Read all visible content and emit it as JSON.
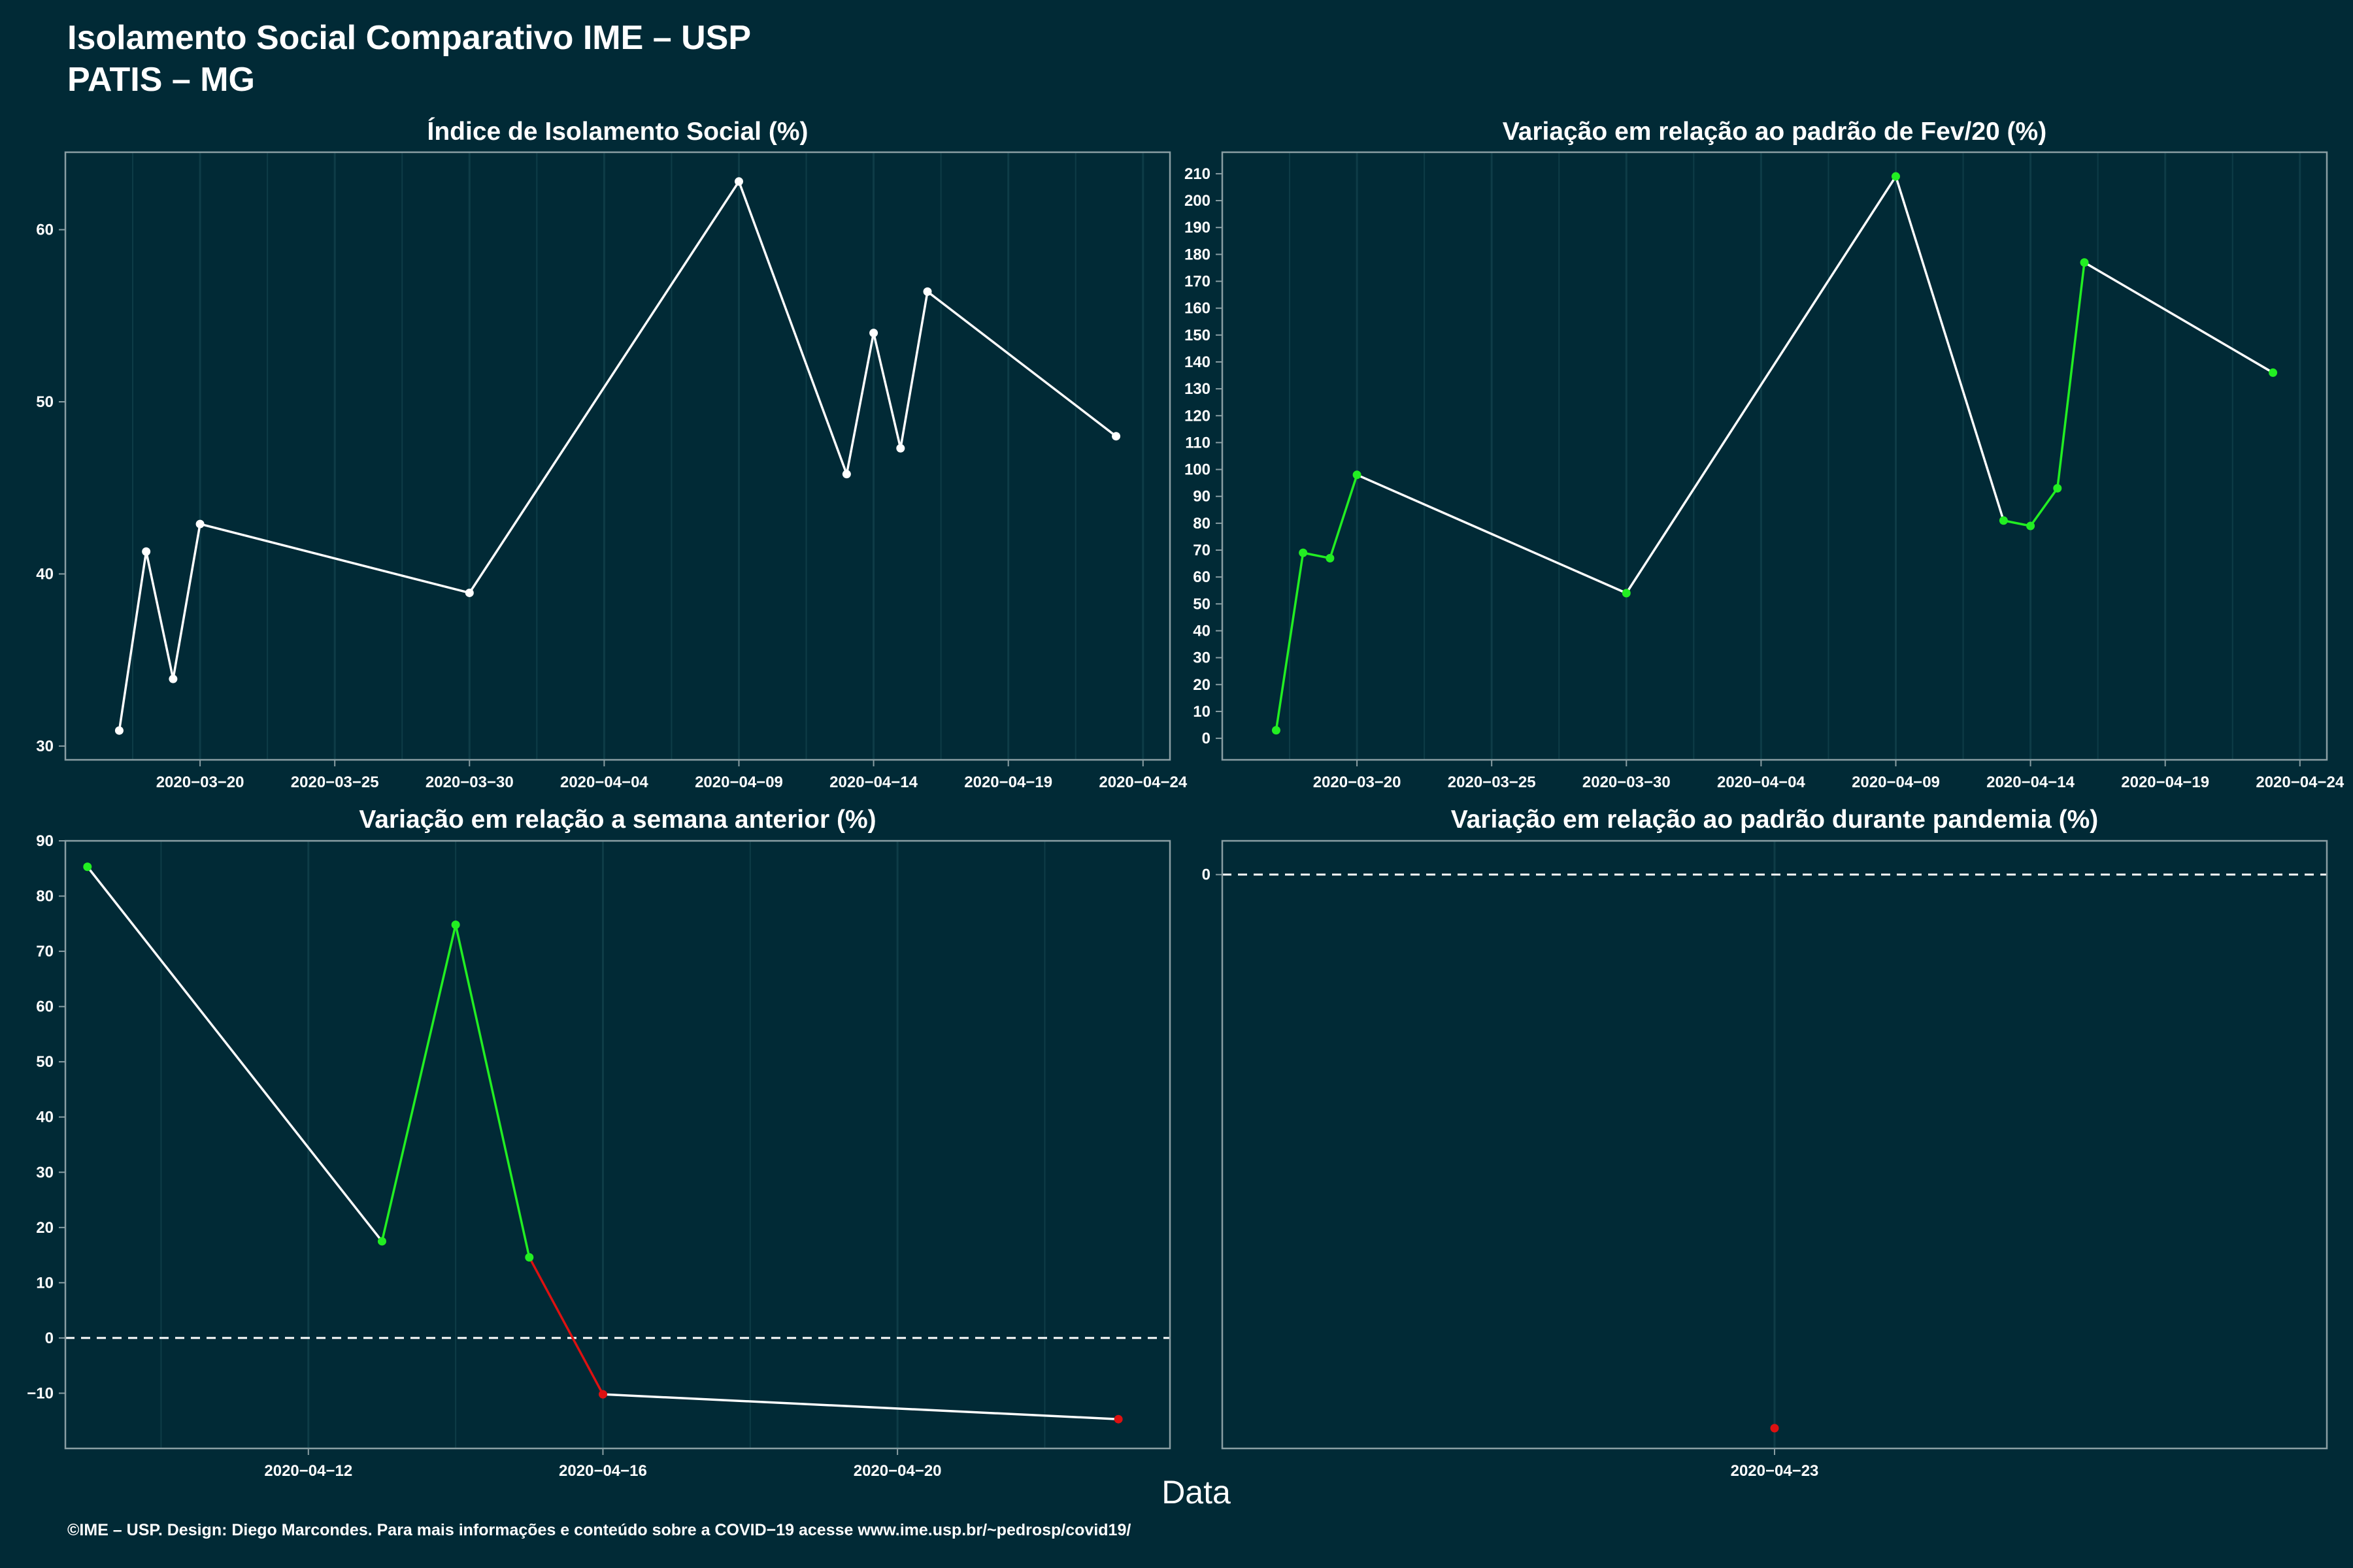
{
  "title": {
    "line1": "Isolamento Social Comparativo IME – USP",
    "line2": "PATIS – MG"
  },
  "x_axis_label": "Data",
  "caption": "©IME – USP. Design: Diego Marcondes. Para mais informações e conteúdo sobre a COVID−19 acesse www.ime.usp.br/~pedrosp/covid19/",
  "colors": {
    "background": "#012a36",
    "line": "#ffffff",
    "positive": "#22ee22",
    "negative": "#dd1111",
    "grid": "#0e3c47",
    "frame": "#8a9ea3"
  },
  "chart_data": [
    {
      "type": "line",
      "title": "Índice de Isolamento Social (%)",
      "xlabel": "Data",
      "ylabel": "",
      "x_is_date": true,
      "xlim": [
        "2020-03-15",
        "2020-04-25"
      ],
      "ylim": [
        29.2,
        64.5
      ],
      "xticks": [
        "2020-03-20",
        "2020-03-25",
        "2020-03-30",
        "2020-04-04",
        "2020-04-09",
        "2020-04-14",
        "2020-04-19",
        "2020-04-24"
      ],
      "xticklabels": [
        "2020−03−20",
        "2020−03−25",
        "2020−03−30",
        "2020−04−04",
        "2020−04−09",
        "2020−04−14",
        "2020−04−19",
        "2020−04−24"
      ],
      "yticks": [
        30,
        40,
        50,
        60
      ],
      "yticklabels": [
        "30",
        "40",
        "50",
        "60"
      ],
      "grid": true,
      "points": [
        {
          "x": "2020-03-17",
          "y": 30.9,
          "color": "#ffffff"
        },
        {
          "x": "2020-03-18",
          "y": 41.3,
          "color": "#ffffff"
        },
        {
          "x": "2020-03-19",
          "y": 33.9,
          "color": "#ffffff"
        },
        {
          "x": "2020-03-20",
          "y": 42.9,
          "color": "#ffffff"
        },
        {
          "x": "2020-03-30",
          "y": 38.9,
          "color": "#ffffff"
        },
        {
          "x": "2020-04-09",
          "y": 62.8,
          "color": "#ffffff"
        },
        {
          "x": "2020-04-13",
          "y": 45.8,
          "color": "#ffffff"
        },
        {
          "x": "2020-04-14",
          "y": 54.0,
          "color": "#ffffff"
        },
        {
          "x": "2020-04-15",
          "y": 47.3,
          "color": "#ffffff"
        },
        {
          "x": "2020-04-16",
          "y": 56.4,
          "color": "#ffffff"
        },
        {
          "x": "2020-04-23",
          "y": 48.0,
          "color": "#ffffff"
        }
      ]
    },
    {
      "type": "line",
      "title": "Variação em relação ao padrão de Fev/20 (%)",
      "xlabel": "Data",
      "ylabel": "",
      "x_is_date": true,
      "xlim": [
        "2020-03-15",
        "2020-04-25"
      ],
      "ylim": [
        -8,
        218
      ],
      "xticks": [
        "2020-03-20",
        "2020-03-25",
        "2020-03-30",
        "2020-04-04",
        "2020-04-09",
        "2020-04-14",
        "2020-04-19",
        "2020-04-24"
      ],
      "xticklabels": [
        "2020−03−20",
        "2020−03−25",
        "2020−03−30",
        "2020−04−04",
        "2020−04−09",
        "2020−04−14",
        "2020−04−19",
        "2020−04−24"
      ],
      "yticks": [
        0,
        10,
        20,
        30,
        40,
        50,
        60,
        70,
        80,
        90,
        100,
        110,
        120,
        130,
        140,
        150,
        160,
        170,
        180,
        190,
        200,
        210
      ],
      "yticklabels": [
        "0",
        "10",
        "20",
        "30",
        "40",
        "50",
        "60",
        "70",
        "80",
        "90",
        "100",
        "110",
        "120",
        "130",
        "140",
        "150",
        "160",
        "170",
        "180",
        "190",
        "200",
        "210"
      ],
      "grid": true,
      "points": [
        {
          "x": "2020-03-17",
          "y": 3,
          "color": "#22ee22"
        },
        {
          "x": "2020-03-18",
          "y": 69,
          "color": "#22ee22"
        },
        {
          "x": "2020-03-19",
          "y": 67,
          "color": "#22ee22"
        },
        {
          "x": "2020-03-20",
          "y": 98,
          "color": "#22ee22"
        },
        {
          "x": "2020-03-30",
          "y": 54,
          "color": "#22ee22"
        },
        {
          "x": "2020-04-09",
          "y": 209,
          "color": "#22ee22"
        },
        {
          "x": "2020-04-13",
          "y": 81,
          "color": "#22ee22"
        },
        {
          "x": "2020-04-14",
          "y": 79,
          "color": "#22ee22"
        },
        {
          "x": "2020-04-15",
          "y": 93,
          "color": "#22ee22"
        },
        {
          "x": "2020-04-16",
          "y": 177,
          "color": "#22ee22"
        },
        {
          "x": "2020-04-23",
          "y": 136,
          "color": "#22ee22"
        }
      ],
      "segment_colors": [
        "#22ee22",
        "#22ee22",
        "#22ee22",
        "#ffffff",
        "#ffffff",
        "#ffffff",
        "#22ee22",
        "#22ee22",
        "#22ee22",
        "#ffffff"
      ]
    },
    {
      "type": "line",
      "title": "Variação em relação a semana anterior (%)",
      "xlabel": "Data",
      "ylabel": "",
      "x_is_date": true,
      "xlim": [
        "2020-04-08.7",
        "2020-04-23.7"
      ],
      "ylim": [
        -20,
        90
      ],
      "xticks": [
        "2020-04-12",
        "2020-04-16",
        "2020-04-20"
      ],
      "xticklabels": [
        "2020−04−12",
        "2020−04−16",
        "2020−04−20"
      ],
      "yticks": [
        -10,
        0,
        10,
        20,
        30,
        40,
        50,
        60,
        70,
        80,
        90
      ],
      "yticklabels": [
        "−10",
        "0",
        "10",
        "20",
        "30",
        "40",
        "50",
        "60",
        "70",
        "80",
        "90"
      ],
      "grid": true,
      "reference_line": 0,
      "points": [
        {
          "x": "2020-04-09",
          "y": 85.3,
          "color": "#22ee22"
        },
        {
          "x": "2020-04-13",
          "y": 17.5,
          "color": "#22ee22"
        },
        {
          "x": "2020-04-14",
          "y": 74.8,
          "color": "#22ee22"
        },
        {
          "x": "2020-04-15",
          "y": 14.6,
          "color": "#22ee22"
        },
        {
          "x": "2020-04-16",
          "y": -10.2,
          "color": "#dd1111"
        },
        {
          "x": "2020-04-23",
          "y": -14.7,
          "color": "#dd1111"
        }
      ],
      "segment_colors": [
        "#ffffff",
        "#22ee22",
        "#22ee22",
        "#dd1111",
        "#ffffff"
      ]
    },
    {
      "type": "scatter",
      "title": "Variação em relação ao padrão durante pandemia (%)",
      "xlabel": "Data",
      "ylabel": "",
      "x_is_date": true,
      "xlim": [
        "2020-04-22.5",
        "2020-04-23.5"
      ],
      "ylim": [
        -17,
        1
      ],
      "xticks": [
        "2020-04-23"
      ],
      "xticklabels": [
        "2020−04−23"
      ],
      "yticks": [
        0
      ],
      "yticklabels": [
        "0"
      ],
      "grid": true,
      "reference_line": 0,
      "points": [
        {
          "x": "2020-04-23",
          "y": -16.4,
          "color": "#dd1111"
        }
      ]
    }
  ]
}
